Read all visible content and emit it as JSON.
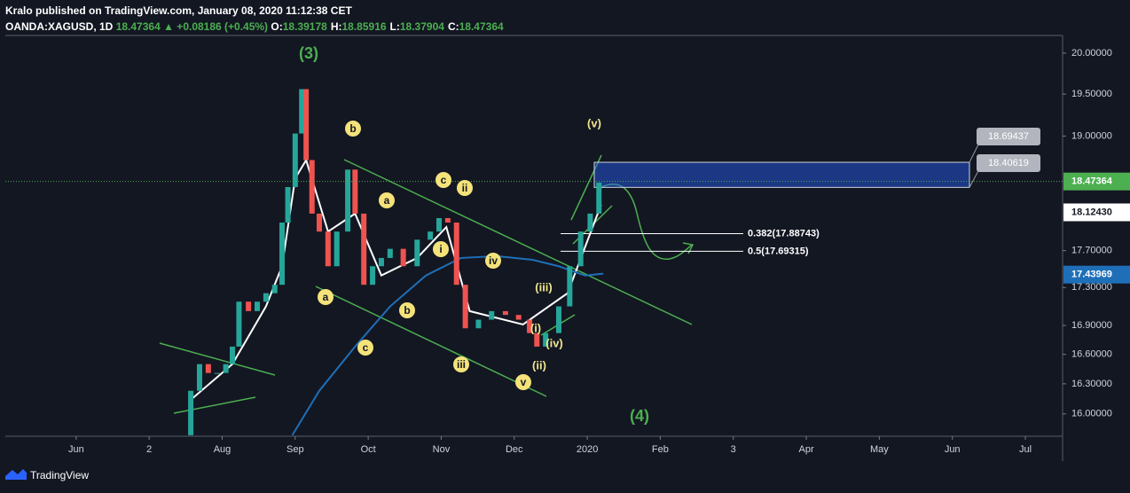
{
  "header": {
    "publisher": "Kralo published on TradingView.com, January 08, 2020 11:12:38 CET",
    "symbol": "OANDA:XAGUSD, 1D",
    "last": "18.47364",
    "change": "▲ +0.08186 (+0.45%)",
    "ohlc": [
      {
        "label": "O:",
        "value": "18.39178"
      },
      {
        "label": "H:",
        "value": "18.85916"
      },
      {
        "label": "L:",
        "value": "18.37904"
      },
      {
        "label": "C:",
        "value": "18.47364"
      }
    ]
  },
  "footer": {
    "brand": "TradingView"
  },
  "chart_data": {
    "type": "candlestick",
    "log_scale": true,
    "grid": false,
    "up_color": "#26a69a",
    "down_color": "#ef5350",
    "x": [
      1.47,
      1.57,
      1.69,
      1.81,
      1.93,
      2.05,
      2.14,
      2.23,
      2.36,
      2.48,
      2.6,
      2.72,
      2.82,
      2.9,
      3.0,
      3.09,
      3.15,
      3.23,
      3.33,
      3.45,
      3.57,
      3.72,
      3.82,
      3.94,
      4.06,
      4.18,
      4.3,
      4.48,
      4.67,
      4.85,
      4.97,
      5.09,
      5.21,
      5.33,
      5.51,
      5.69,
      5.88,
      6.06,
      6.21,
      6.31,
      6.43,
      6.61,
      6.76,
      6.91,
      7.04,
      7.16
    ],
    "values": [
      15.79,
      16.23,
      16.5,
      16.41,
      16.41,
      16.5,
      16.68,
      17.15,
      17.05,
      17.15,
      17.24,
      17.33,
      18.01,
      18.41,
      19.03,
      19.56,
      18.72,
      18.11,
      17.91,
      17.53,
      17.91,
      18.61,
      18.11,
      17.33,
      17.53,
      17.62,
      17.72,
      17.53,
      17.82,
      17.91,
      18.06,
      18.01,
      17.33,
      16.87,
      16.96,
      17.05,
      17.01,
      16.96,
      16.82,
      16.68,
      16.82,
      17.1,
      17.53,
      17.91,
      18.11,
      18.46
    ],
    "overlays": [
      {
        "color": "#ffffff",
        "x": [
          1.57,
          2.14,
          2.6,
          2.82,
          3.0,
          3.15,
          3.45,
          3.82,
          4.18,
          4.67,
          5.07,
          5.39,
          6.12,
          6.73,
          7.19
        ],
        "values": [
          16.14,
          16.5,
          17.1,
          17.53,
          18.51,
          18.72,
          17.91,
          18.11,
          17.43,
          17.62,
          17.96,
          17.05,
          16.91,
          17.24,
          18.21
        ]
      },
      {
        "color": "#1e6fb8",
        "x": [
          2.96,
          3.33,
          3.82,
          4.3,
          4.79,
          5.27,
          5.76,
          6.25,
          6.61,
          6.97,
          7.22
        ],
        "values": [
          15.79,
          16.23,
          16.68,
          17.1,
          17.43,
          17.62,
          17.64,
          17.6,
          17.53,
          17.43,
          17.45
        ]
      }
    ],
    "xlim": [
      -0.97,
      13.51
    ],
    "xticks": [
      {
        "value": 0,
        "label": "Jun"
      },
      {
        "value": 1,
        "label": "2"
      },
      {
        "value": 2,
        "label": "Aug"
      },
      {
        "value": 3,
        "label": "Sep"
      },
      {
        "value": 4,
        "label": "Oct"
      },
      {
        "value": 5,
        "label": "Nov"
      },
      {
        "value": 6,
        "label": "Dec"
      },
      {
        "value": 7,
        "label": "2020"
      },
      {
        "value": 8,
        "label": "Feb"
      },
      {
        "value": 9,
        "label": "3"
      },
      {
        "value": 10,
        "label": "Apr"
      },
      {
        "value": 11,
        "label": "May"
      },
      {
        "value": 12,
        "label": "Jun"
      },
      {
        "value": 13,
        "label": "Jul"
      }
    ],
    "ylim": [
      15.78,
      20.22
    ],
    "yticks": [
      {
        "value": 20,
        "label": "20.00000"
      },
      {
        "value": 19.5,
        "label": "19.50000"
      },
      {
        "value": 19,
        "label": "19.00000"
      },
      {
        "value": 17.7,
        "label": "17.70000"
      },
      {
        "value": 17.3,
        "label": "17.30000"
      },
      {
        "value": 16.9,
        "label": "16.90000"
      },
      {
        "value": 16.6,
        "label": "16.60000"
      },
      {
        "value": 16.3,
        "label": "16.30000"
      },
      {
        "value": 16,
        "label": "16.00000"
      }
    ],
    "price_tags": [
      {
        "value": 18.47364,
        "color": "#4caf50"
      },
      {
        "value": 18.1243,
        "label": "18.12430",
        "color": "#ffffff"
      },
      {
        "value": 17.43969,
        "color": "#1e6fb8"
      }
    ],
    "zone": [
      18.69437,
      18.40619
    ],
    "levels": [
      {
        "value": 17.88743,
        "label": "0.382(17.88743)"
      },
      {
        "value": 17.69315,
        "label": "0.5(17.69315)"
      }
    ],
    "annotations": [
      "(3)",
      "(4)",
      "(v)",
      "b",
      "a",
      "c",
      "ii",
      "i",
      "iv",
      "a",
      "b",
      "c",
      "iii",
      "v",
      "(iii)",
      "(i)",
      "(iv)",
      "(ii)"
    ]
  }
}
